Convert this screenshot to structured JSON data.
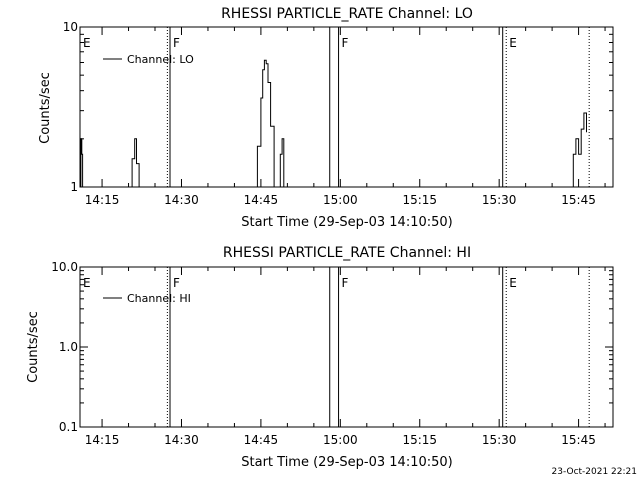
{
  "timestamp": "23-Oct-2021 22:21",
  "chart_data": [
    {
      "type": "line",
      "title": "RHESSI PARTICLE_RATE Channel: LO",
      "xlabel": "Start Time (29-Sep-03 14:10:50)",
      "ylabel": "Counts/sec",
      "xlim": [
        "14:10:50",
        "15:51:30"
      ],
      "ylim": [
        1,
        10
      ],
      "yscale": "log",
      "x_ticks": [
        "14:15",
        "14:30",
        "14:45",
        "15:00",
        "15:15",
        "15:30",
        "15:45"
      ],
      "y_ticks": [
        "1",
        "10"
      ],
      "legend": {
        "entry": "Channel: LO",
        "placement": "top-left"
      },
      "grid": false,
      "markers": [
        {
          "label": "E",
          "time": "14:10:50",
          "style": "none"
        },
        {
          "label": "F",
          "time": "14:27:50",
          "style": "solid"
        },
        {
          "label": "",
          "time": "14:27:20",
          "style": "dotted"
        },
        {
          "label": "",
          "time": "14:58:00",
          "style": "solid"
        },
        {
          "label": "F",
          "time": "14:59:40",
          "style": "solid"
        },
        {
          "label": "",
          "time": "15:30:40",
          "style": "solid"
        },
        {
          "label": "E",
          "time": "15:31:20",
          "style": "dotted"
        },
        {
          "label": "",
          "time": "15:47:00",
          "style": "dotted"
        }
      ],
      "series": [
        {
          "name": "Channel: LO",
          "segments": [
            {
              "x": [
                "14:10:50",
                "14:11:00",
                "14:11:10",
                "14:11:20",
                "14:11:30"
              ],
              "y": [
                1,
                2.0,
                1.6,
                1.0,
                1
              ]
            },
            {
              "x": [
                "14:20:00",
                "14:20:40",
                "14:21:10",
                "14:21:30",
                "14:22:00"
              ],
              "y": [
                1,
                1.5,
                2.0,
                1.4,
                1
              ]
            },
            {
              "x": [
                "14:43:40",
                "14:44:20",
                "14:45:00",
                "14:45:20",
                "14:45:40",
                "14:46:00",
                "14:46:20",
                "14:46:50",
                "14:47:30"
              ],
              "y": [
                1,
                1.8,
                3.6,
                5.4,
                6.2,
                5.9,
                4.5,
                2.4,
                1
              ]
            },
            {
              "x": [
                "14:48:20",
                "14:48:40",
                "14:49:00",
                "14:49:20"
              ],
              "y": [
                1,
                1.6,
                2.0,
                1
              ]
            },
            {
              "x": [
                "15:43:30",
                "15:44:00",
                "15:44:30",
                "15:45:00",
                "15:45:30",
                "15:46:00",
                "15:46:30"
              ],
              "y": [
                1,
                1.6,
                2.0,
                1.6,
                2.3,
                2.9,
                2.2
              ]
            }
          ]
        }
      ]
    },
    {
      "type": "line",
      "title": "RHESSI PARTICLE_RATE Channel: HI",
      "xlabel": "Start Time (29-Sep-03 14:10:50)",
      "ylabel": "Counts/sec",
      "xlim": [
        "14:10:50",
        "15:51:30"
      ],
      "ylim": [
        0.1,
        10
      ],
      "yscale": "log",
      "x_ticks": [
        "14:15",
        "14:30",
        "14:45",
        "15:00",
        "15:15",
        "15:30",
        "15:45"
      ],
      "y_ticks": [
        "0.1",
        "1.0",
        "10.0"
      ],
      "legend": {
        "entry": "Channel: HI",
        "placement": "top-left"
      },
      "grid": false,
      "markers": [
        {
          "label": "E",
          "time": "14:10:50",
          "style": "none"
        },
        {
          "label": "F",
          "time": "14:27:50",
          "style": "solid"
        },
        {
          "label": "",
          "time": "14:27:20",
          "style": "dotted"
        },
        {
          "label": "",
          "time": "14:58:00",
          "style": "solid"
        },
        {
          "label": "F",
          "time": "14:59:40",
          "style": "solid"
        },
        {
          "label": "",
          "time": "15:30:40",
          "style": "solid"
        },
        {
          "label": "E",
          "time": "15:31:20",
          "style": "dotted"
        },
        {
          "label": "",
          "time": "15:47:00",
          "style": "dotted"
        }
      ],
      "series": [
        {
          "name": "Channel: HI",
          "segments": []
        }
      ]
    }
  ]
}
